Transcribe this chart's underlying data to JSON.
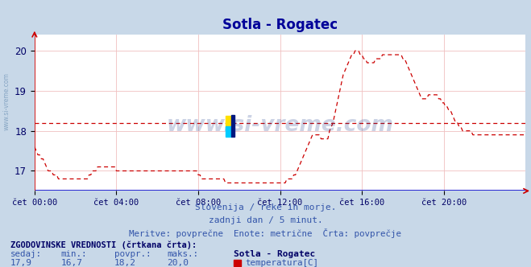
{
  "title": "Sotla - Rogatec",
  "title_color": "#000099",
  "title_fontsize": 12,
  "bg_color": "#c8d8e8",
  "plot_bg_color": "#ffffff",
  "grid_color": "#e0b8b8",
  "line_color": "#cc0000",
  "avg_line_value": 18.2,
  "x_tick_minutes": [
    0,
    240,
    480,
    720,
    960,
    1200
  ],
  "x_tick_labels": [
    "čet 00:00",
    "čet 04:00",
    "čet 08:00",
    "čet 12:00",
    "čet 16:00",
    "čet 20:00"
  ],
  "y_ticks": [
    17,
    18,
    19,
    20
  ],
  "ylim_min": 16.5,
  "ylim_max": 20.4,
  "xlim_min": 0,
  "xlim_max": 1440,
  "subtitle1": "Slovenija / reke in morje.",
  "subtitle2": "zadnji dan / 5 minut.",
  "subtitle3": "Meritve: povprečne  Enote: metrične  Črta: povprečje",
  "footer_bold": "ZGODOVINSKE VREDNOSTI (črtkana črta):",
  "footer_headers": [
    "sedaj:",
    "min.:",
    "povpr.:",
    "maks.:"
  ],
  "footer_values": [
    "17,9",
    "16,7",
    "18,2",
    "20,0"
  ],
  "footer_station": "Sotla - Rogatec",
  "footer_param": "temperatura[C]",
  "watermark": "www.si-vreme.com",
  "temperatures": [
    17.6,
    17.5,
    17.4,
    17.4,
    17.3,
    17.3,
    17.2,
    17.1,
    17.0,
    17.0,
    17.0,
    16.9,
    16.9,
    16.9,
    16.8,
    16.8,
    16.8,
    16.8,
    16.8,
    16.8,
    16.8,
    16.8,
    16.8,
    16.8,
    16.8,
    16.8,
    16.8,
    16.8,
    16.8,
    16.8,
    16.8,
    16.8,
    16.9,
    16.9,
    17.0,
    17.0,
    17.0,
    17.1,
    17.1,
    17.1,
    17.1,
    17.1,
    17.1,
    17.1,
    17.1,
    17.1,
    17.1,
    17.1,
    17.0,
    17.0,
    17.0,
    17.0,
    17.0,
    17.0,
    17.0,
    17.0,
    17.0,
    17.0,
    17.0,
    17.0,
    17.0,
    17.0,
    17.0,
    17.0,
    17.0,
    17.0,
    17.0,
    17.0,
    17.0,
    17.0,
    17.0,
    17.0,
    17.0,
    17.0,
    17.0,
    17.0,
    17.0,
    17.0,
    17.0,
    17.0,
    17.0,
    17.0,
    17.0,
    17.0,
    17.0,
    17.0,
    17.0,
    17.0,
    17.0,
    17.0,
    17.0,
    17.0,
    17.0,
    17.0,
    17.0,
    17.0,
    16.9,
    16.9,
    16.8,
    16.8,
    16.8,
    16.8,
    16.8,
    16.8,
    16.8,
    16.8,
    16.8,
    16.8,
    16.8,
    16.8,
    16.8,
    16.8,
    16.7,
    16.7,
    16.7,
    16.7,
    16.7,
    16.7,
    16.7,
    16.7,
    16.7,
    16.7,
    16.7,
    16.7,
    16.7,
    16.7,
    16.7,
    16.7,
    16.7,
    16.7,
    16.7,
    16.7,
    16.7,
    16.7,
    16.7,
    16.7,
    16.7,
    16.7,
    16.7,
    16.7,
    16.7,
    16.7,
    16.7,
    16.7,
    16.7,
    16.7,
    16.7,
    16.7,
    16.8,
    16.8,
    16.8,
    16.8,
    16.9,
    16.9,
    17.0,
    17.1,
    17.2,
    17.3,
    17.4,
    17.5,
    17.6,
    17.7,
    17.8,
    17.9,
    17.9,
    17.9,
    17.9,
    17.9,
    17.8,
    17.8,
    17.8,
    17.8,
    17.8,
    18.0,
    18.1,
    18.2,
    18.4,
    18.6,
    18.8,
    19.0,
    19.2,
    19.4,
    19.5,
    19.6,
    19.7,
    19.8,
    19.9,
    19.9,
    20.0,
    20.0,
    20.0,
    19.9,
    19.9,
    19.8,
    19.8,
    19.7,
    19.7,
    19.7,
    19.7,
    19.7,
    19.8,
    19.8,
    19.8,
    19.8,
    19.9,
    19.9,
    19.9,
    19.9,
    19.9,
    19.9,
    19.9,
    19.9,
    19.9,
    19.9,
    19.9,
    19.9,
    19.8,
    19.8,
    19.7,
    19.6,
    19.5,
    19.4,
    19.3,
    19.2,
    19.1,
    19.0,
    18.9,
    18.8,
    18.8,
    18.8,
    18.8,
    18.9,
    18.9,
    18.9,
    18.9,
    18.9,
    18.9,
    18.8,
    18.8,
    18.7,
    18.7,
    18.6,
    18.6,
    18.5,
    18.5,
    18.4,
    18.3,
    18.2,
    18.2,
    18.1,
    18.1,
    18.0,
    18.0,
    18.0,
    18.0,
    18.0,
    18.0,
    17.9,
    17.9,
    17.9,
    17.9,
    17.9,
    17.9,
    17.9,
    17.9,
    17.9,
    17.9,
    17.9,
    17.9,
    17.9,
    17.9,
    17.9,
    17.9,
    17.9,
    17.9,
    17.9,
    17.9,
    17.9,
    17.9,
    17.9,
    17.9,
    17.9,
    17.9,
    17.9,
    17.9,
    17.9,
    17.9,
    17.9,
    17.9,
    17.9,
    17.9,
    17.9,
    17.9,
    17.9,
    17.9,
    17.9,
    17.9,
    17.9,
    17.9,
    17.9,
    17.9,
    17.9,
    17.9,
    17.9,
    17.9,
    17.9,
    17.9,
    17.9,
    17.9,
    17.9
  ]
}
